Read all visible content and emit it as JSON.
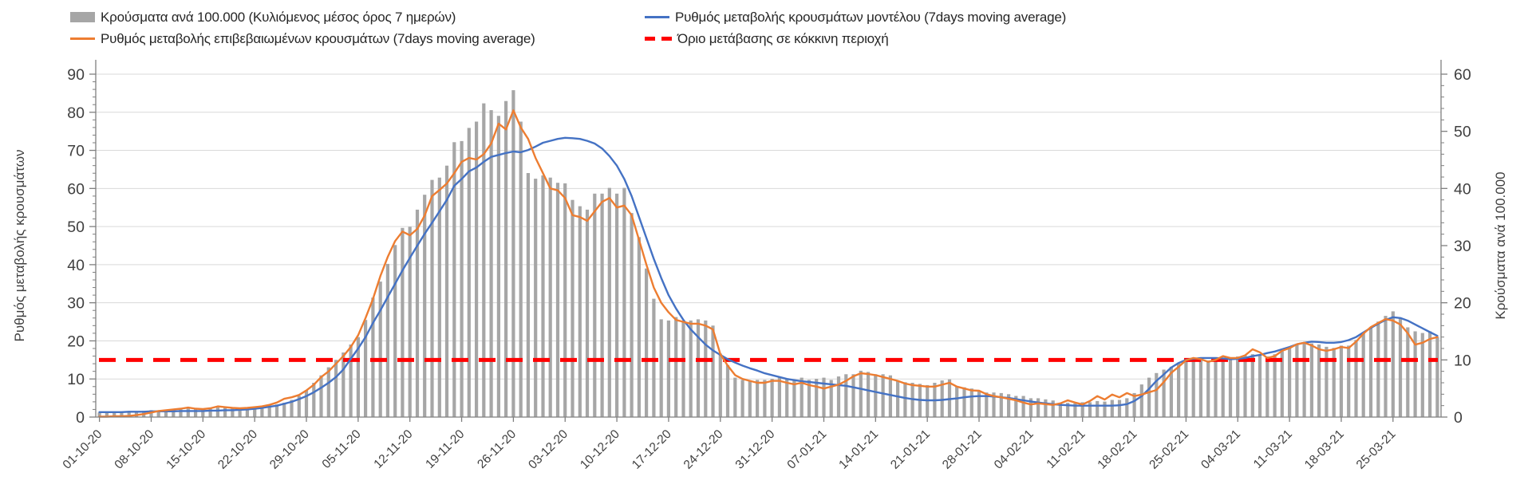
{
  "legend": {
    "items": [
      {
        "label": "Κρούσματα ανά 100.000 (Κυλιόμενος μέσος όρος 7 ημερών)",
        "swatch": "gray-bar",
        "color": "#a6a6a6"
      },
      {
        "label": "Ρυθμός μεταβολής κρουσμάτων μοντέλου (7days moving average)",
        "swatch": "blue-line",
        "color": "#4472c4"
      },
      {
        "label": "Ρυθμός μεταβολής επιβεβαιωμένων κρουσμάτων (7days moving average)",
        "swatch": "orange-line",
        "color": "#ed7d31"
      },
      {
        "label": "Όριο μετάβασης σε κόκκινη περιοχή",
        "swatch": "red-dash",
        "color": "#ff0000"
      }
    ]
  },
  "left_axis": {
    "title": "Ρυθμός μεταβολής κρουσμάτων",
    "ticks": [
      0,
      10,
      20,
      30,
      40,
      50,
      60,
      70,
      80,
      90
    ]
  },
  "right_axis": {
    "title": "Κρούσματα ανά 100.000",
    "ticks": [
      0,
      10,
      20,
      30,
      40,
      50,
      60
    ]
  },
  "x_axis": {
    "tick_labels": [
      "01-10-20",
      "08-10-20",
      "15-10-20",
      "22-10-20",
      "29-10-20",
      "05-11-20",
      "12-11-20",
      "19-11-20",
      "26-11-20",
      "03-12-20",
      "10-12-20",
      "17-12-20",
      "24-12-20",
      "31-12-20",
      "07-01-21",
      "14-01-21",
      "21-01-21",
      "28-01-21",
      "04-02-21",
      "11-02-21",
      "18-02-21",
      "25-02-21",
      "04-03-21",
      "11-03-21",
      "18-03-21",
      "25-03-21"
    ]
  },
  "chart_data": {
    "type": "combo (bar + line)",
    "x_start": "01-10-20",
    "x_end": "31-03-21",
    "frequency": "daily",
    "x_tick_every_days": 7,
    "left_axis_range": [
      0,
      90
    ],
    "right_axis_range": [
      0,
      60
    ],
    "grid": "horizontal only",
    "gridline_color": "#d9d9d9",
    "axis_color": "#7f7f7f",
    "legend_position": "top",
    "series": [
      {
        "name": "Κρούσματα ανά 100.000 (Κυλιόμενος μέσος όρος 7 ημερών)",
        "type": "bar",
        "axis": "right",
        "color": "#a6a6a6",
        "values": [
          0.8,
          0.8,
          0.9,
          0.9,
          1.0,
          1.0,
          1.1,
          1.2,
          1.2,
          1.3,
          1.4,
          1.4,
          1.5,
          1.4,
          1.5,
          1.6,
          1.7,
          1.6,
          1.6,
          1.5,
          1.6,
          1.7,
          1.8,
          2.0,
          2.2,
          2.5,
          3.0,
          3.7,
          4.7,
          6.0,
          7.3,
          8.7,
          10.0,
          11.3,
          12.7,
          14.0,
          17.0,
          20.9,
          23.7,
          26.8,
          30.1,
          33.1,
          33.3,
          36.3,
          38.9,
          41.5,
          41.9,
          44.0,
          48.1,
          48.3,
          50.6,
          51.7,
          54.9,
          53.7,
          52.7,
          55.3,
          57.2,
          51.7,
          42.7,
          41.7,
          42.3,
          41.9,
          41.0,
          40.9,
          38.0,
          36.9,
          36.3,
          39.1,
          39.1,
          40.1,
          39.1,
          40.1,
          35.7,
          31.5,
          26.0,
          20.7,
          17.1,
          16.9,
          17.5,
          16.9,
          16.9,
          17.1,
          16.9,
          16.0,
          11.1,
          9.1,
          6.9,
          6.5,
          6.3,
          6.5,
          6.5,
          6.7,
          6.9,
          6.7,
          6.5,
          6.9,
          6.5,
          6.7,
          6.9,
          6.5,
          7.1,
          7.5,
          7.5,
          8.1,
          7.9,
          7.5,
          7.5,
          7.3,
          6.3,
          6.1,
          6.0,
          5.8,
          5.6,
          6.0,
          6.4,
          6.6,
          5.3,
          5.2,
          5.0,
          4.6,
          4.3,
          4.3,
          4.2,
          4.0,
          3.7,
          3.7,
          3.3,
          3.3,
          3.1,
          2.9,
          2.5,
          2.5,
          2.4,
          2.6,
          2.6,
          2.8,
          2.7,
          3.0,
          3.0,
          3.3,
          4.2,
          5.7,
          6.9,
          7.7,
          8.3,
          8.8,
          9.5,
          9.7,
          9.9,
          10.1,
          9.9,
          10.1,
          10.1,
          10.3,
          10.6,
          10.8,
          11.0,
          10.8,
          10.6,
          11.0,
          11.5,
          12.3,
          12.7,
          13.0,
          12.9,
          12.7,
          12.3,
          12.1,
          12.5,
          12.5,
          13.5,
          14.8,
          15.7,
          16.7,
          17.7,
          18.5,
          17.3,
          15.7,
          15.0,
          14.7,
          15.0,
          14.0
        ]
      },
      {
        "name": "Ρυθμός μεταβολής κρουσμάτων μοντέλου (7days moving average)",
        "type": "line",
        "axis": "left",
        "color": "#4472c4",
        "values": [
          1.3,
          1.3,
          1.3,
          1.3,
          1.4,
          1.4,
          1.4,
          1.5,
          1.5,
          1.5,
          1.5,
          1.6,
          1.6,
          1.6,
          1.6,
          1.7,
          1.7,
          1.8,
          1.8,
          1.9,
          2.0,
          2.2,
          2.4,
          2.7,
          3.0,
          3.5,
          4.0,
          4.7,
          5.5,
          6.5,
          7.7,
          9.0,
          10.5,
          12.5,
          15.3,
          18.0,
          21.0,
          24.7,
          28.0,
          31.5,
          35.0,
          38.5,
          41.8,
          45.0,
          48.1,
          51.0,
          54.0,
          57.0,
          60.7,
          62.5,
          64.5,
          65.5,
          67.0,
          68.3,
          68.8,
          69.3,
          69.7,
          69.5,
          70.1,
          71.0,
          72.0,
          72.5,
          73.0,
          73.3,
          73.2,
          73.0,
          72.5,
          71.8,
          70.5,
          68.5,
          66.0,
          62.5,
          58.0,
          52.5,
          47.0,
          41.5,
          36.5,
          32.0,
          28.5,
          25.5,
          23.0,
          21.0,
          19.0,
          17.5,
          16.3,
          15.2,
          14.3,
          13.5,
          12.8,
          12.2,
          11.5,
          11.0,
          10.5,
          10.0,
          9.7,
          9.4,
          9.2,
          9.0,
          8.8,
          8.6,
          8.4,
          8.2,
          7.8,
          7.4,
          7.0,
          6.6,
          6.2,
          5.8,
          5.4,
          5.0,
          4.7,
          4.5,
          4.4,
          4.4,
          4.5,
          4.7,
          4.9,
          5.2,
          5.4,
          5.5,
          5.5,
          5.4,
          5.2,
          5.0,
          4.7,
          4.4,
          4.1,
          3.8,
          3.6,
          3.4,
          3.2,
          3.1,
          3.0,
          3.0,
          3.0,
          3.0,
          3.0,
          3.0,
          3.1,
          3.4,
          4.2,
          5.5,
          7.4,
          9.5,
          11.2,
          13.0,
          14.2,
          15.0,
          15.3,
          15.5,
          15.5,
          15.5,
          15.4,
          15.2,
          15.3,
          15.5,
          16.0,
          16.3,
          16.8,
          17.2,
          17.8,
          18.4,
          19.1,
          19.5,
          19.8,
          19.7,
          19.5,
          19.5,
          19.7,
          20.2,
          21.0,
          22.2,
          23.4,
          24.5,
          25.5,
          26.2,
          26.0,
          25.3,
          24.3,
          23.3,
          22.3,
          21.3
        ]
      },
      {
        "name": "Ρυθμός μεταβολής επιβεβαιωμένων κρουσμάτων (7days moving average)",
        "type": "line",
        "axis": "left",
        "color": "#ed7d31",
        "values": [
          0.1,
          0.1,
          0.2,
          0.2,
          0.3,
          0.5,
          0.8,
          1.2,
          1.6,
          1.8,
          2.0,
          2.2,
          2.5,
          2.2,
          2.1,
          2.3,
          2.8,
          2.6,
          2.4,
          2.3,
          2.4,
          2.6,
          2.8,
          3.2,
          3.8,
          4.8,
          5.2,
          5.8,
          7.0,
          8.5,
          10.5,
          12.0,
          14.0,
          16.0,
          18.4,
          21.5,
          26.0,
          31.0,
          37.0,
          42.0,
          46.2,
          48.7,
          47.7,
          49.4,
          52.9,
          58.0,
          59.6,
          61.3,
          64.0,
          67.0,
          68.0,
          67.6,
          69.0,
          71.8,
          77.0,
          75.5,
          80.5,
          76.0,
          73.0,
          68.0,
          64.0,
          60.0,
          59.5,
          57.5,
          53.0,
          52.5,
          51.5,
          54.0,
          56.5,
          57.5,
          55.0,
          55.5,
          53.0,
          46.5,
          40.0,
          34.0,
          30.0,
          27.5,
          25.5,
          25.0,
          24.5,
          24.5,
          24.0,
          23.0,
          16.5,
          13.5,
          11.0,
          10.0,
          9.5,
          9.0,
          9.0,
          9.5,
          9.5,
          9.0,
          8.6,
          9.0,
          8.4,
          8.0,
          7.5,
          8.0,
          8.5,
          9.5,
          10.7,
          11.5,
          11.3,
          11.0,
          10.5,
          10.0,
          9.5,
          8.8,
          8.4,
          8.2,
          8.0,
          8.0,
          8.5,
          9.0,
          8.0,
          7.5,
          7.0,
          6.9,
          6.0,
          5.5,
          5.2,
          4.8,
          4.4,
          3.8,
          3.3,
          3.6,
          3.4,
          3.2,
          3.6,
          4.4,
          3.8,
          3.3,
          4.2,
          5.5,
          4.6,
          5.9,
          5.2,
          6.3,
          5.5,
          5.9,
          6.5,
          7.1,
          9.2,
          11.6,
          13.2,
          14.9,
          15.5,
          15.2,
          14.5,
          15.0,
          16.0,
          15.5,
          15.5,
          16.2,
          17.8,
          17.0,
          15.5,
          16.0,
          17.4,
          18.1,
          19.1,
          19.5,
          18.8,
          17.8,
          17.4,
          17.8,
          18.4,
          18.1,
          19.8,
          21.9,
          23.6,
          24.7,
          25.7,
          25.3,
          24.3,
          22.0,
          19.0,
          19.5,
          20.5,
          21.0
        ]
      },
      {
        "name": "Όριο μετάβασης σε κόκκινη περιοχή",
        "type": "threshold",
        "axis": "left",
        "color": "#ff0000",
        "left_axis_value": 15,
        "right_axis_value": 10
      }
    ]
  }
}
